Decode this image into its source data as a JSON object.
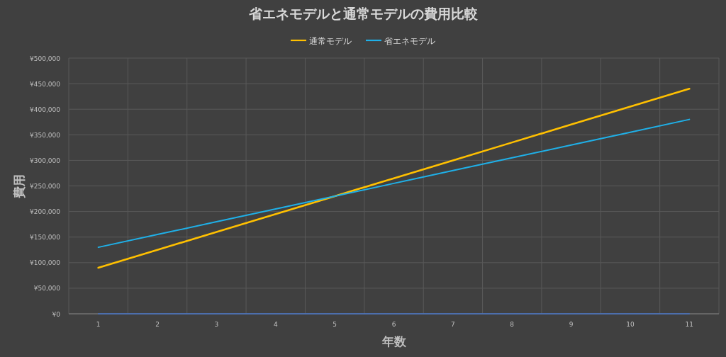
{
  "chart_data": {
    "type": "line",
    "title": "省エネモデルと通常モデルの費用比較",
    "xlabel": "年数",
    "ylabel": "費用",
    "categories": [
      "1",
      "2",
      "3",
      "4",
      "5",
      "6",
      "7",
      "8",
      "9",
      "10",
      "11"
    ],
    "series": [
      {
        "name": "通常モデル",
        "color": "#ffc000",
        "values": [
          90000,
          125000,
          160000,
          195000,
          230000,
          265000,
          300000,
          335000,
          370000,
          405000,
          440000
        ]
      },
      {
        "name": "省エネモデル",
        "color": "#1fb0e8",
        "values": [
          130000,
          155000,
          180000,
          205000,
          230000,
          255000,
          280000,
          305000,
          330000,
          355000,
          380000
        ]
      },
      {
        "color": "#4472c4",
        "values": [
          0,
          0,
          0,
          0,
          0,
          0,
          0,
          0,
          0,
          0,
          0
        ]
      }
    ],
    "ylim": [
      0,
      500000
    ],
    "yticks": [
      {
        "value": 0,
        "label": "¥0"
      },
      {
        "value": 50000,
        "label": "¥50,000"
      },
      {
        "value": 100000,
        "label": "¥100,000"
      },
      {
        "value": 150000,
        "label": "¥150,000"
      },
      {
        "value": 200000,
        "label": "¥200,000"
      },
      {
        "value": 250000,
        "label": "¥250,000"
      },
      {
        "value": 300000,
        "label": "¥300,000"
      },
      {
        "value": 350000,
        "label": "¥350,000"
      },
      {
        "value": 400000,
        "label": "¥400,000"
      },
      {
        "value": 450000,
        "label": "¥450,000"
      },
      {
        "value": 500000,
        "label": "¥500,000"
      }
    ],
    "grid": true,
    "legend": "top",
    "marker": "none",
    "line_style": "solid"
  }
}
